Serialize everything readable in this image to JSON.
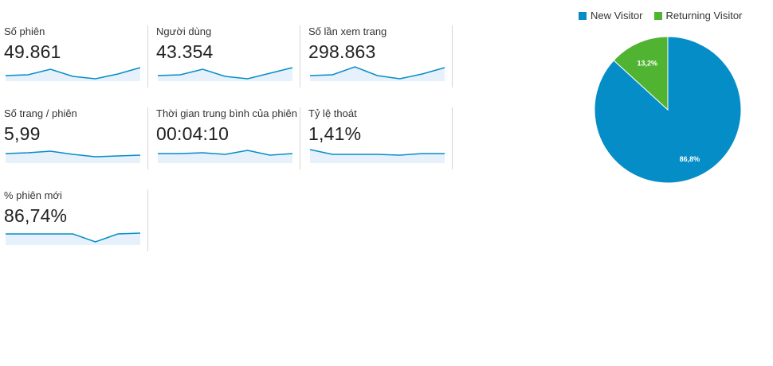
{
  "metrics": [
    {
      "label": "Số phiên",
      "value": "49.861",
      "trend": [
        0.25,
        0.3,
        0.65,
        0.2,
        0.05,
        0.35,
        0.75
      ]
    },
    {
      "label": "Người dùng",
      "value": "43.354",
      "trend": [
        0.25,
        0.3,
        0.65,
        0.2,
        0.05,
        0.4,
        0.75
      ]
    },
    {
      "label": "Số lần xem trang",
      "value": "298.863",
      "trend": [
        0.25,
        0.3,
        0.8,
        0.25,
        0.05,
        0.35,
        0.75
      ]
    },
    {
      "label": "Số trang / phiên",
      "value": "5,99",
      "trend": [
        0.5,
        0.55,
        0.65,
        0.45,
        0.3,
        0.35,
        0.4
      ]
    },
    {
      "label": "Thời gian trung bình của phiên",
      "value": "00:04:10",
      "trend": [
        0.5,
        0.5,
        0.55,
        0.45,
        0.7,
        0.4,
        0.5
      ]
    },
    {
      "label": "Tỷ lệ thoát",
      "value": "1,41%",
      "trend": [
        0.75,
        0.45,
        0.45,
        0.45,
        0.4,
        0.5,
        0.5
      ]
    },
    {
      "label": "% phiên mới",
      "value": "86,74%",
      "trend": [
        0.6,
        0.6,
        0.6,
        0.6,
        0.1,
        0.6,
        0.65
      ]
    }
  ],
  "pie": {
    "legend": [
      {
        "label": "New Visitor",
        "color": "#058dc7"
      },
      {
        "label": "Returning Visitor",
        "color": "#50b432"
      }
    ],
    "slices": [
      {
        "name": "New Visitor",
        "value": 86.8,
        "label": "86,8%",
        "color": "#058dc7"
      },
      {
        "name": "Returning Visitor",
        "value": 13.2,
        "label": "13,2%",
        "color": "#50b432"
      }
    ]
  },
  "colors": {
    "sparkline_line": "#058dc7",
    "sparkline_fill": "#e6f1fb"
  }
}
